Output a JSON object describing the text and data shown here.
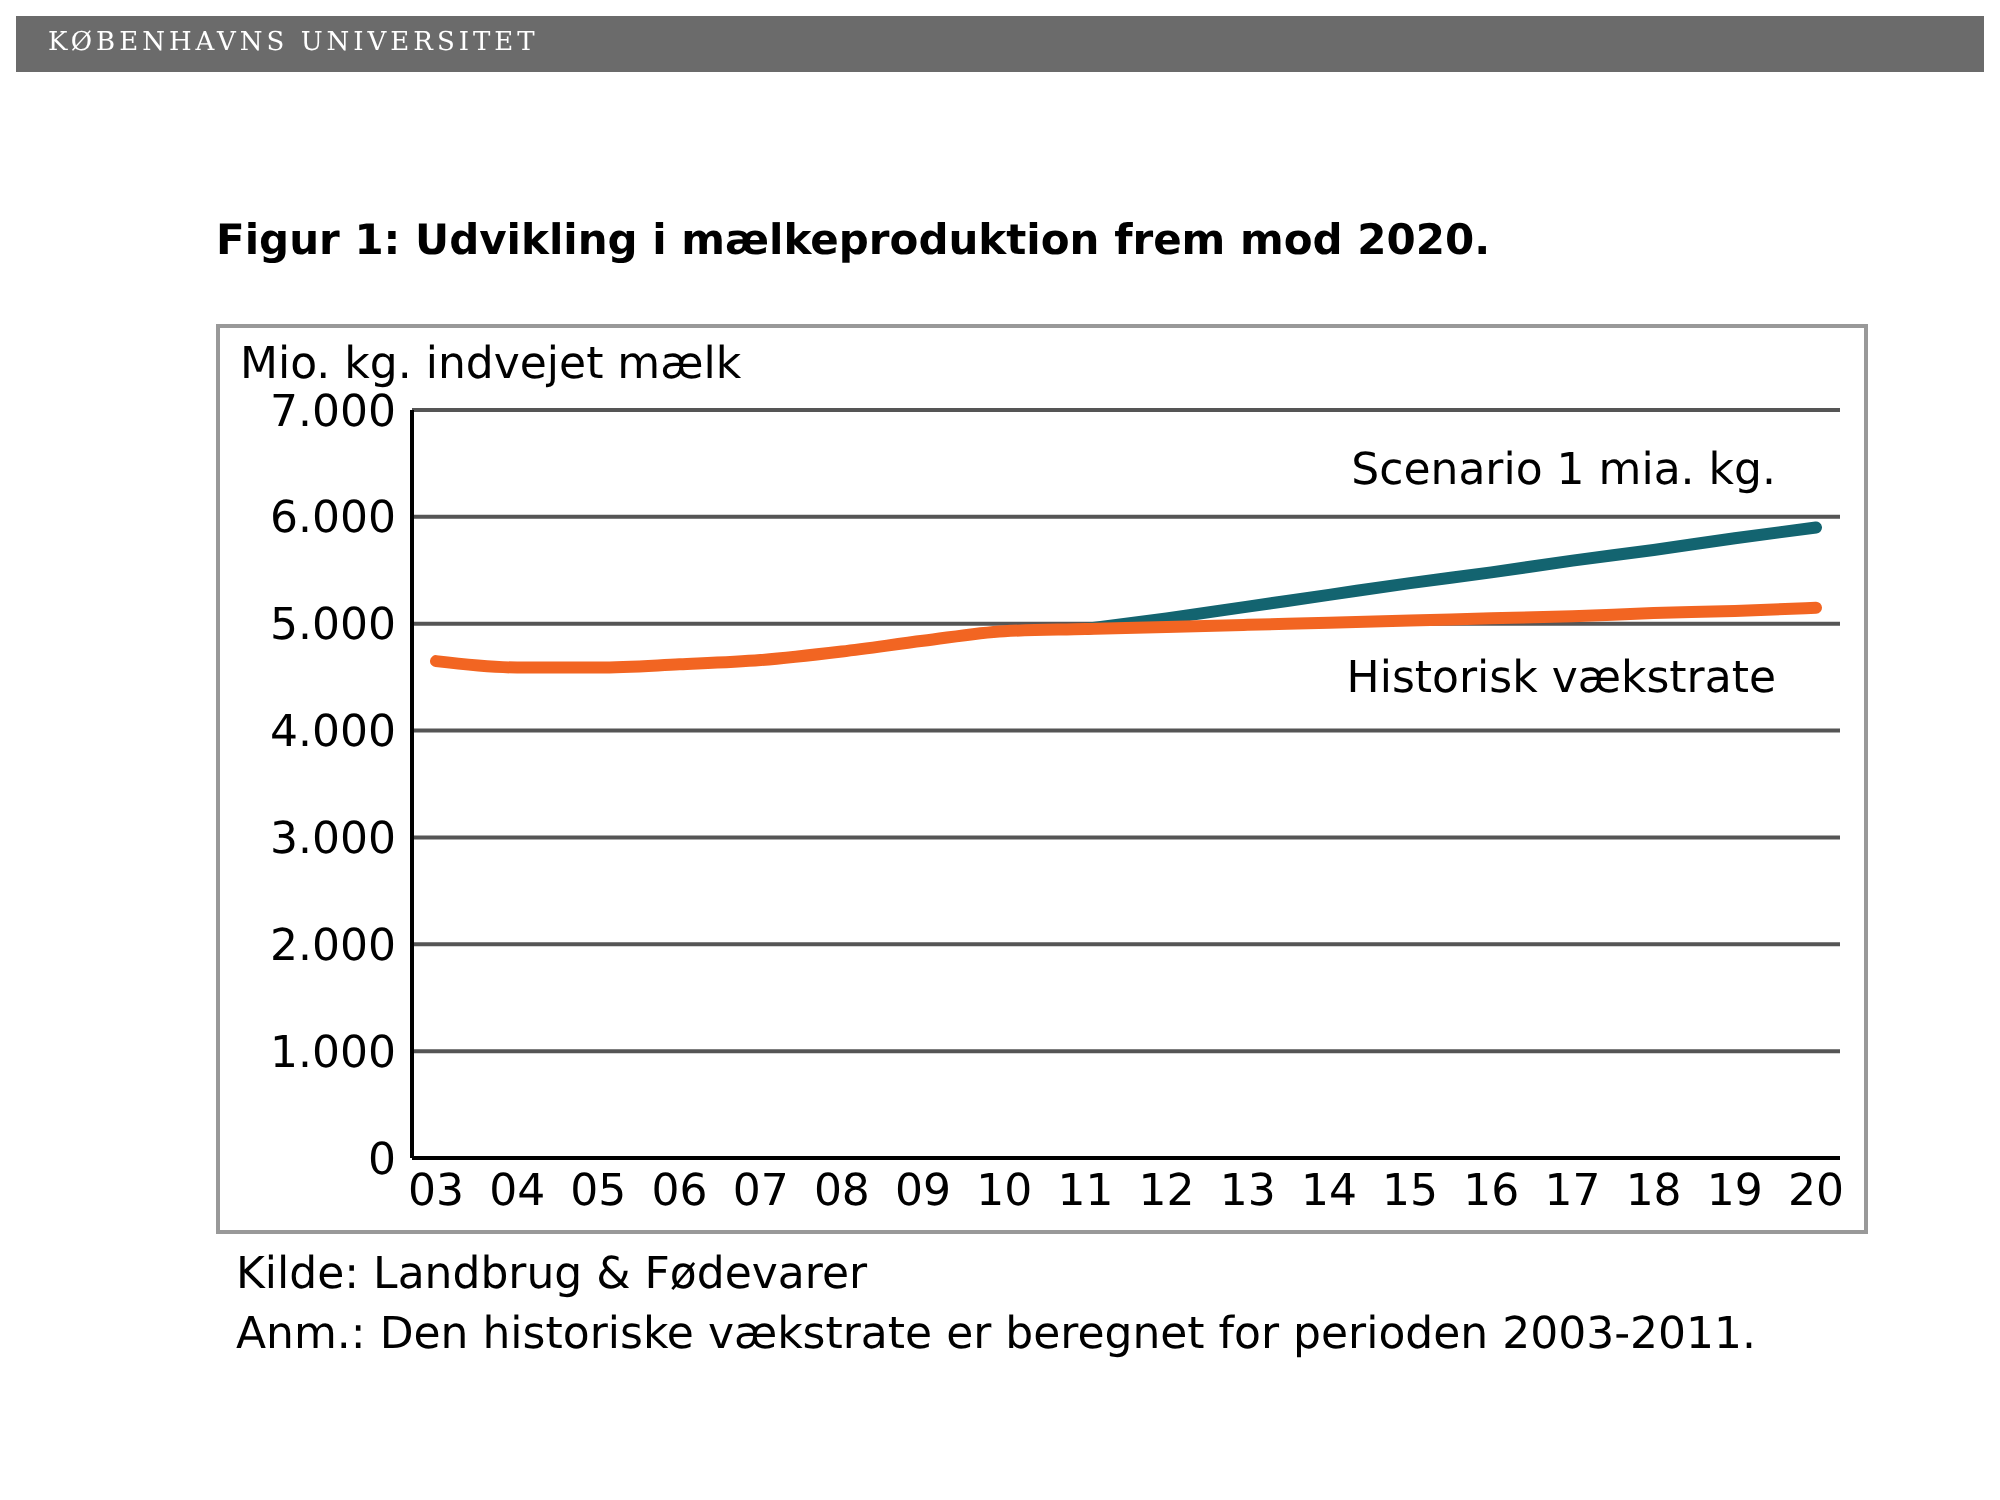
{
  "chart_data": {
    "type": "line",
    "title": "Figur 1: Udvikling i mælkeproduktion frem mod 2020.",
    "ylabel": "Mio. kg. indvejet mælk",
    "categories": [
      "03",
      "04",
      "05",
      "06",
      "07",
      "08",
      "09",
      "10",
      "11",
      "12",
      "13",
      "14",
      "15",
      "16",
      "17",
      "18",
      "19",
      "20"
    ],
    "series": [
      {
        "name": "Scenario 1 mia. kg.",
        "color": "#136470",
        "values": [
          null,
          null,
          null,
          null,
          null,
          null,
          null,
          null,
          4950,
          5050,
          5160,
          5270,
          5380,
          5480,
          5590,
          5690,
          5800,
          5900
        ]
      },
      {
        "name": "Historisk vækstrate",
        "color": "#f26522",
        "values": [
          4650,
          4590,
          4590,
          4620,
          4660,
          4740,
          4840,
          4930,
          4950,
          4970,
          4990,
          5010,
          5030,
          5050,
          5070,
          5100,
          5120,
          5150
        ]
      }
    ],
    "ylim": [
      0,
      7000
    ],
    "yticks": [
      {
        "value": 0,
        "label": "0"
      },
      {
        "value": 1000,
        "label": "1.000"
      },
      {
        "value": 2000,
        "label": "2.000"
      },
      {
        "value": 3000,
        "label": "3.000"
      },
      {
        "value": 4000,
        "label": "4.000"
      },
      {
        "value": 5000,
        "label": "5.000"
      },
      {
        "value": 6000,
        "label": "6.000"
      },
      {
        "value": 7000,
        "label": "7.000"
      }
    ],
    "grid": "y",
    "legend": false,
    "marker": "none",
    "line_style": "solid",
    "annotations": [
      "KØBENHAVNS UNIVERSITET",
      "Kilde: Landbrug & Fødevarer",
      "Anm.: Den historiske vækstrate er beregnet for perioden 2003-2011."
    ]
  }
}
